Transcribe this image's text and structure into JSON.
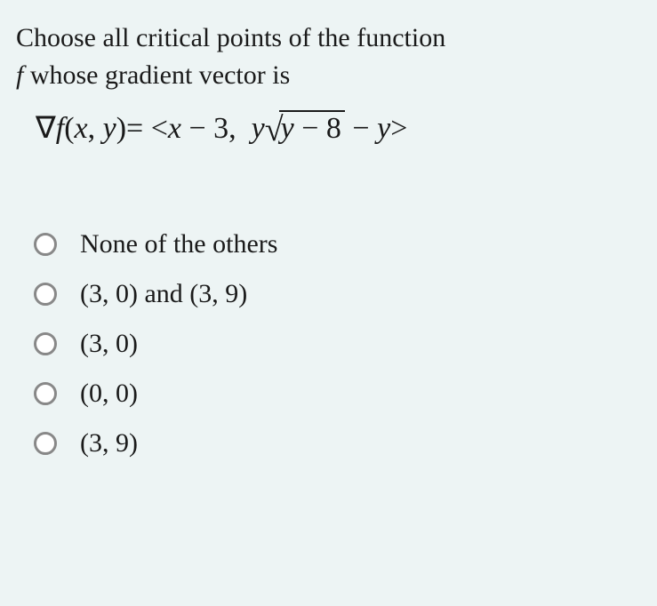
{
  "question": {
    "line1": "Choose all critical points of the function",
    "line2_prefix": "f",
    "line2_rest": " whose gradient vector is"
  },
  "equation": {
    "grad": "∇",
    "f": "f",
    "xy_open": "(",
    "x": "x",
    "comma1": ", ",
    "y": "y",
    "xy_close": ")= <",
    "x2": "x",
    "minus1": " − 3, ",
    "y2": "y",
    "sqrt_y": "y",
    "sqrt_m8": " − 8",
    "minus2": " − ",
    "y3": "y",
    "close": ">"
  },
  "options": [
    {
      "text": "None of the others",
      "math": false
    },
    {
      "text": "(3,  0) and (3,  9)",
      "math": true
    },
    {
      "text": "(3,  0)",
      "math": true
    },
    {
      "text": "(0,  0)",
      "math": true
    },
    {
      "text": "(3,  9)",
      "math": true
    }
  ],
  "colors": {
    "background": "#edf4f4",
    "text": "#1a1a1a",
    "radio_border": "#888888",
    "radio_fill": "#ffffff"
  },
  "typography": {
    "question_fontsize": 30,
    "equation_fontsize": 34,
    "option_fontsize": 30
  }
}
